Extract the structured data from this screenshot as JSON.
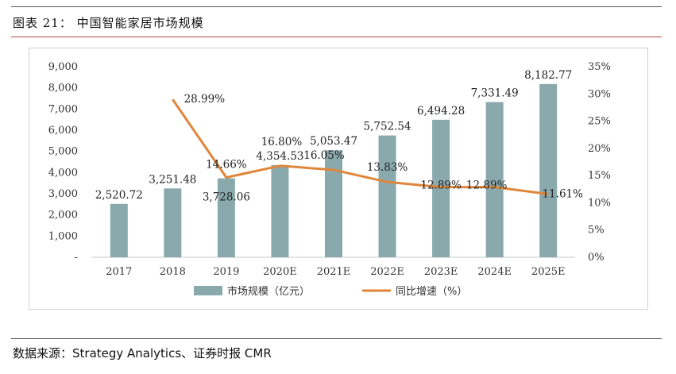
{
  "figure": {
    "title": "图表 21：  中国智能家居市场规模",
    "source": "数据来源：Strategy Analytics、证券时报 CMR"
  },
  "colors": {
    "bar": "#8aa9ad",
    "line": "#e0863a",
    "text": "#333333"
  },
  "chart_data": {
    "type": "bar",
    "categories": [
      "2017",
      "2018",
      "2019",
      "2020E",
      "2021E",
      "2022E",
      "2023E",
      "2024E",
      "2025E"
    ],
    "series": [
      {
        "name": "市场规模（亿元）",
        "type": "bar",
        "axis": "left",
        "values": [
          2520.72,
          3251.48,
          3728.06,
          4354.53,
          5053.47,
          5752.54,
          6494.28,
          7331.49,
          8182.77
        ],
        "labels": [
          "2,520.72",
          "3,251.48",
          "3,728.06",
          "4,354.53",
          "5,053.47",
          "5,752.54",
          "6,494.28",
          "7,331.49",
          "8,182.77"
        ]
      },
      {
        "name": "同比增速（%）",
        "type": "line",
        "axis": "right",
        "values": [
          null,
          28.99,
          14.66,
          16.8,
          16.05,
          13.83,
          12.89,
          12.89,
          11.61
        ],
        "labels": [
          "",
          "28.99%",
          "14.66%",
          "16.80%",
          "16.05%",
          "13.83%",
          "12.89%",
          "12.89%",
          "11.61%"
        ]
      }
    ],
    "y_left": {
      "min": 0,
      "max": 9000,
      "step": 1000,
      "tick_labels": [
        "-",
        "1,000",
        "2,000",
        "3,000",
        "4,000",
        "5,000",
        "6,000",
        "7,000",
        "8,000",
        "9,000"
      ]
    },
    "y_right": {
      "min": 0,
      "max": 35,
      "step": 5,
      "tick_labels": [
        "0%",
        "5%",
        "10%",
        "15%",
        "20%",
        "25%",
        "30%",
        "35%"
      ]
    },
    "legend": {
      "placement": "bottom"
    },
    "grid": false
  }
}
